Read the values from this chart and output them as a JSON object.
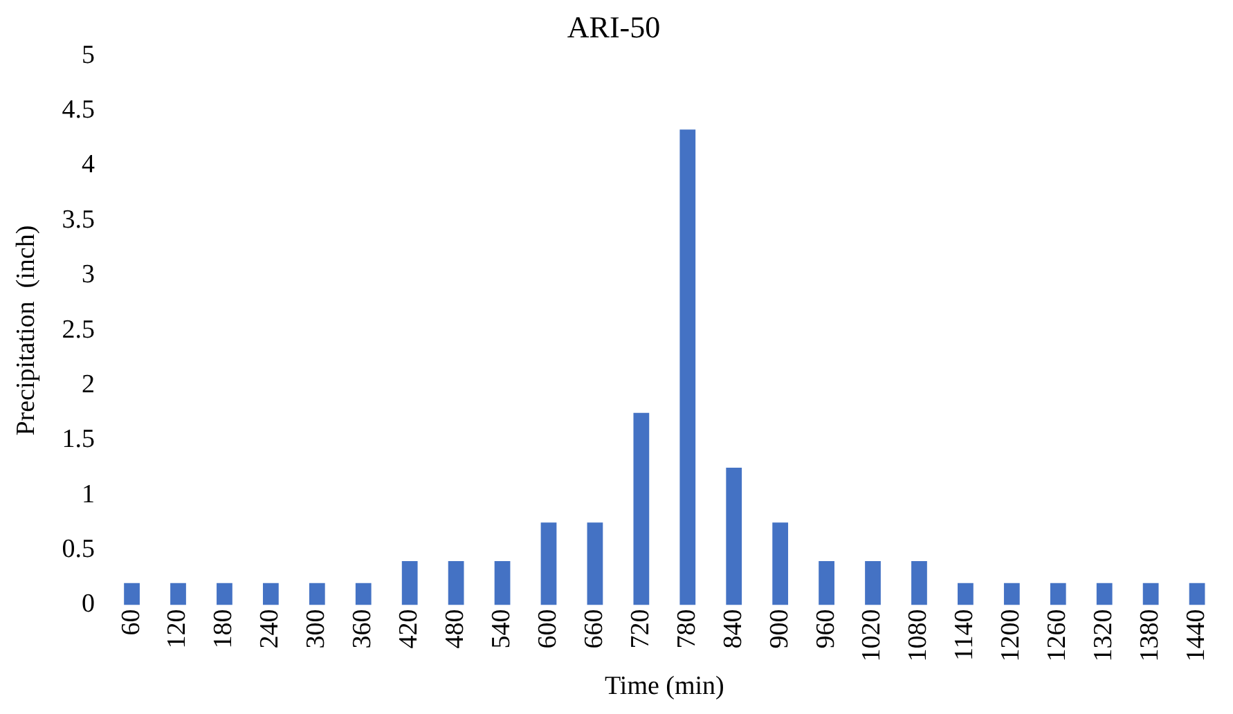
{
  "chart_data": {
    "type": "bar",
    "title": "ARI-50",
    "xlabel": "Time (min)",
    "ylabel": "Precipitation  (inch)",
    "categories": [
      "60",
      "120",
      "180",
      "240",
      "300",
      "360",
      "420",
      "480",
      "540",
      "600",
      "660",
      "720",
      "780",
      "840",
      "900",
      "960",
      "1020",
      "1080",
      "1140",
      "1200",
      "1260",
      "1320",
      "1380",
      "1440"
    ],
    "values": [
      0.2,
      0.2,
      0.2,
      0.2,
      0.2,
      0.2,
      0.4,
      0.4,
      0.4,
      0.75,
      0.75,
      1.75,
      4.33,
      1.25,
      0.75,
      0.4,
      0.4,
      0.4,
      0.2,
      0.2,
      0.2,
      0.2,
      0.2,
      0.2
    ],
    "color": "#4472c4",
    "ylim": [
      0,
      5
    ],
    "yticks": [
      0,
      0.5,
      1,
      1.5,
      2,
      2.5,
      3,
      3.5,
      4,
      4.5,
      5
    ],
    "grid": false,
    "legend": false
  }
}
